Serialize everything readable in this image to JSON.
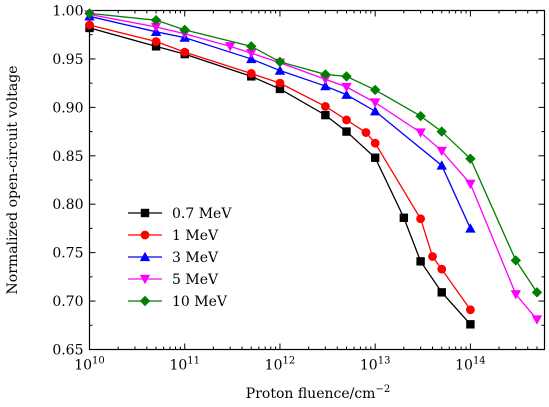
{
  "chart_data": {
    "type": "line",
    "title": "",
    "xlabel": "Proton fluence/cm",
    "xlabel_sup": "−2",
    "ylabel": "Normalized open-circuit voltage",
    "xscale": "log",
    "xlim": [
      10000000000.0,
      600000000000000.0
    ],
    "ylim": [
      0.65,
      1.0
    ],
    "xticks": [
      {
        "value": 10000000000.0,
        "base": "10",
        "exp": "10"
      },
      {
        "value": 100000000000.0,
        "base": "10",
        "exp": "11"
      },
      {
        "value": 1000000000000.0,
        "base": "10",
        "exp": "12"
      },
      {
        "value": 10000000000000.0,
        "base": "10",
        "exp": "13"
      },
      {
        "value": 100000000000000.0,
        "base": "10",
        "exp": "14"
      }
    ],
    "yticks": [
      "0.65",
      "0.70",
      "0.75",
      "0.80",
      "0.85",
      "0.90",
      "0.95",
      "1.00"
    ],
    "grid": false,
    "legend_position": "bottom-left",
    "series": [
      {
        "name": "0.7 MeV",
        "color": "#000000",
        "marker": "square",
        "points": [
          [
            10000000000.0,
            0.982
          ],
          [
            50000000000.0,
            0.963
          ],
          [
            100000000000.0,
            0.955
          ],
          [
            500000000000.0,
            0.932
          ],
          [
            1000000000000.0,
            0.919
          ],
          [
            3000000000000.0,
            0.892
          ],
          [
            5000000000000.0,
            0.875
          ],
          [
            10000000000000.0,
            0.848
          ],
          [
            20000000000000.0,
            0.786
          ],
          [
            30000000000000.0,
            0.741
          ],
          [
            50000000000000.0,
            0.709
          ],
          [
            100000000000000.0,
            0.676
          ]
        ]
      },
      {
        "name": "1 MeV",
        "color": "#ff0000",
        "marker": "circle",
        "points": [
          [
            10000000000.0,
            0.985
          ],
          [
            50000000000.0,
            0.968
          ],
          [
            100000000000.0,
            0.957
          ],
          [
            500000000000.0,
            0.935
          ],
          [
            1000000000000.0,
            0.925
          ],
          [
            3000000000000.0,
            0.901
          ],
          [
            5000000000000.0,
            0.887
          ],
          [
            8000000000000.0,
            0.874
          ],
          [
            10000000000000.0,
            0.863
          ],
          [
            30000000000000.0,
            0.785
          ],
          [
            40000000000000.0,
            0.746
          ],
          [
            50000000000000.0,
            0.733
          ],
          [
            100000000000000.0,
            0.691
          ]
        ]
      },
      {
        "name": "3 MeV",
        "color": "#0000ff",
        "marker": "triangle-up",
        "points": [
          [
            10000000000.0,
            0.994
          ],
          [
            50000000000.0,
            0.978
          ],
          [
            100000000000.0,
            0.972
          ],
          [
            500000000000.0,
            0.95
          ],
          [
            1000000000000.0,
            0.938
          ],
          [
            3000000000000.0,
            0.922
          ],
          [
            5000000000000.0,
            0.913
          ],
          [
            10000000000000.0,
            0.896
          ],
          [
            50000000000000.0,
            0.84
          ],
          [
            100000000000000.0,
            0.775
          ]
        ]
      },
      {
        "name": "5 MeV",
        "color": "#ff00ff",
        "marker": "triangle-down",
        "points": [
          [
            10000000000.0,
            0.996
          ],
          [
            50000000000.0,
            0.983
          ],
          [
            100000000000.0,
            0.976
          ],
          [
            300000000000.0,
            0.963
          ],
          [
            500000000000.0,
            0.956
          ],
          [
            1000000000000.0,
            0.946
          ],
          [
            3000000000000.0,
            0.929
          ],
          [
            5000000000000.0,
            0.921
          ],
          [
            10000000000000.0,
            0.905
          ],
          [
            30000000000000.0,
            0.874
          ],
          [
            50000000000000.0,
            0.855
          ],
          [
            100000000000000.0,
            0.821
          ],
          [
            300000000000000.0,
            0.707
          ],
          [
            500000000000000.0,
            0.681
          ]
        ]
      },
      {
        "name": "10 MeV",
        "color": "#008000",
        "marker": "diamond",
        "points": [
          [
            10000000000.0,
            0.997
          ],
          [
            50000000000.0,
            0.99
          ],
          [
            100000000000.0,
            0.98
          ],
          [
            500000000000.0,
            0.963
          ],
          [
            1000000000000.0,
            0.947
          ],
          [
            3000000000000.0,
            0.934
          ],
          [
            5000000000000.0,
            0.932
          ],
          [
            10000000000000.0,
            0.918
          ],
          [
            30000000000000.0,
            0.891
          ],
          [
            50000000000000.0,
            0.875
          ],
          [
            100000000000000.0,
            0.847
          ],
          [
            300000000000000.0,
            0.742
          ],
          [
            500000000000000.0,
            0.709
          ]
        ]
      }
    ]
  }
}
